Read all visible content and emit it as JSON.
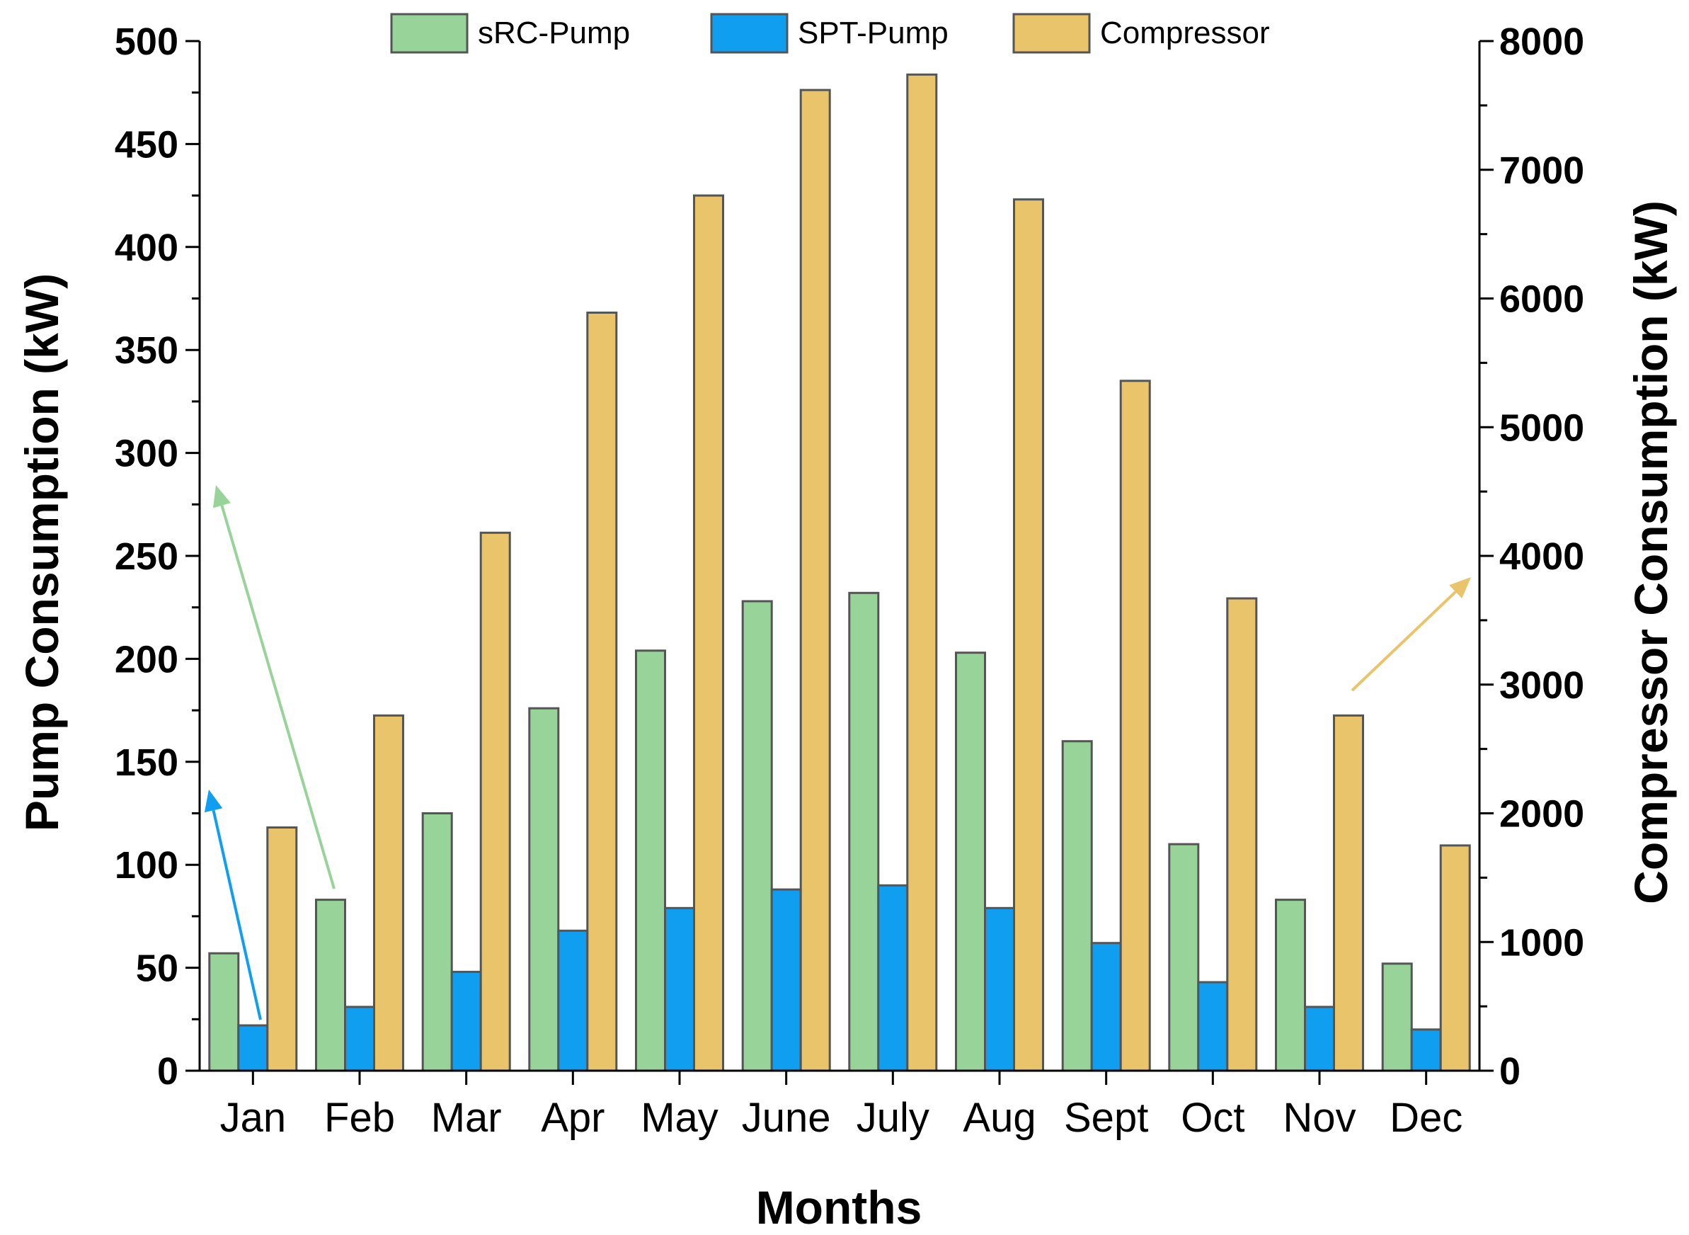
{
  "chart_data": {
    "type": "bar",
    "categories": [
      "Jan",
      "Feb",
      "Mar",
      "Apr",
      "May",
      "June",
      "July",
      "Aug",
      "Sept",
      "Oct",
      "Nov",
      "Dec"
    ],
    "series": [
      {
        "name": "sRC-Pump",
        "axis": "left",
        "color": "#98d49a",
        "values": [
          57,
          83,
          125,
          176,
          204,
          228,
          232,
          203,
          160,
          110,
          83,
          52
        ]
      },
      {
        "name": "SPT-Pump",
        "axis": "left",
        "color": "#0f9ef0",
        "values": [
          22,
          31,
          48,
          68,
          79,
          88,
          90,
          79,
          62,
          43,
          31,
          20
        ]
      },
      {
        "name": "Compressor",
        "axis": "right",
        "color": "#eac46a",
        "values": [
          1890,
          2760,
          4180,
          5890,
          6800,
          7620,
          7740,
          6770,
          5360,
          3670,
          2760,
          1750
        ]
      }
    ],
    "xlabel": "Months",
    "ylabel_left": "Pump Consumption (kW)",
    "ylabel_right": "Compressor Consumption (kW)",
    "ylim_left": [
      0,
      500
    ],
    "yticks_left": [
      0,
      50,
      100,
      150,
      200,
      250,
      300,
      350,
      400,
      450,
      500
    ],
    "ylim_right": [
      0,
      8000
    ],
    "yticks_right": [
      0,
      1000,
      2000,
      3000,
      4000,
      5000,
      6000,
      7000,
      8000
    ],
    "legend_position": "top-center",
    "grid": false,
    "annotations": [
      {
        "type": "arrow",
        "color": "#0f9ef0",
        "points_to": "left axis",
        "meaning": "SPT-Pump reads left axis"
      },
      {
        "type": "arrow",
        "color": "#98d49a",
        "points_to": "left axis",
        "meaning": "sRC-Pump reads left axis"
      },
      {
        "type": "arrow",
        "color": "#eac46a",
        "points_to": "right axis",
        "meaning": "Compressor reads right axis"
      }
    ]
  }
}
